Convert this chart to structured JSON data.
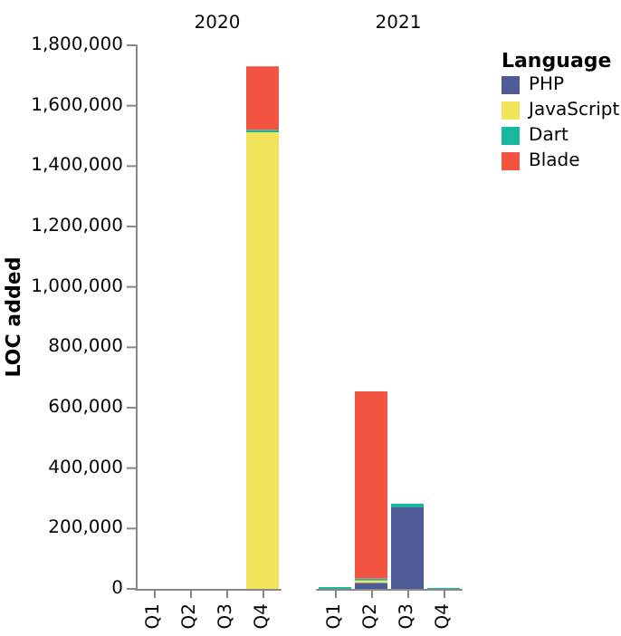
{
  "chart_data": [
    {
      "type": "bar",
      "title": "2020",
      "ylabel": "LOC added",
      "categories": [
        "Q1",
        "Q2",
        "Q3",
        "Q4"
      ],
      "stacked": true,
      "ylim": [
        0,
        1800000
      ],
      "yticks": [
        {
          "value": 0,
          "label": "0"
        },
        {
          "value": 200000,
          "label": "200,000"
        },
        {
          "value": 400000,
          "label": "400,000"
        },
        {
          "value": 600000,
          "label": "600,000"
        },
        {
          "value": 800000,
          "label": "800,000"
        },
        {
          "value": 1000000,
          "label": "1,000,000"
        },
        {
          "value": 1200000,
          "label": "1,200,000"
        },
        {
          "value": 1400000,
          "label": "1,400,000"
        },
        {
          "value": 1600000,
          "label": "1,600,000"
        },
        {
          "value": 1800000,
          "label": "1,800,000"
        }
      ],
      "series": [
        {
          "color": "#4e5b94",
          "values": [
            0,
            0,
            0,
            0
          ]
        },
        {
          "color": "#f2e35d",
          "values": [
            0,
            0,
            0,
            1512000
          ]
        },
        {
          "color": "#1ab8a1",
          "values": [
            0,
            0,
            0,
            8000
          ]
        },
        {
          "color": "#f35442",
          "values": [
            0,
            0,
            0,
            210000
          ]
        }
      ]
    },
    {
      "type": "bar",
      "title": "2021",
      "categories": [
        "Q1",
        "Q2",
        "Q3",
        "Q4"
      ],
      "stacked": true,
      "ylim": [
        0,
        1800000
      ],
      "tick_labels": "x",
      "legend": "top right",
      "legend_title": "Language",
      "series": [
        {
          "name": "PHP",
          "color": "#4e5b94",
          "values": [
            0,
            20000,
            270000,
            0
          ]
        },
        {
          "name": "JavaScript",
          "color": "#f2e35d",
          "values": [
            0,
            8000,
            0,
            0
          ]
        },
        {
          "name": "Dart",
          "color": "#1ab8a1",
          "values": [
            6000,
            6000,
            12000,
            3000
          ]
        },
        {
          "name": "Blade",
          "color": "#f35442",
          "values": [
            0,
            620000,
            0,
            0
          ]
        }
      ]
    }
  ]
}
